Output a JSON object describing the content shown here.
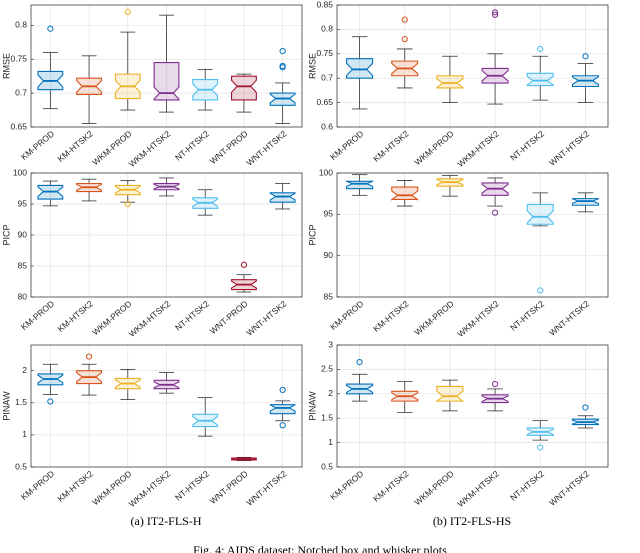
{
  "chart_data": [
    {
      "type": "box",
      "ylabel": "RMSE",
      "ylim": [
        0.65,
        0.83
      ],
      "yticks": [
        0.65,
        0.7,
        0.75,
        0.8
      ],
      "grid": true,
      "categories": [
        "KM-PROD",
        "KM-HTSK2",
        "WKM-PROD",
        "WKM-HTSK2",
        "NT-HTSK2",
        "WNT-PROD",
        "WNT-HTSK2"
      ],
      "colors": [
        "#0072bd",
        "#d95319",
        "#edb120",
        "#7e2f8e",
        "#4dbeee",
        "#a2142f",
        "#0072bd"
      ],
      "stats": [
        {
          "whislo": 0.677,
          "q1": 0.705,
          "med": 0.718,
          "q3": 0.732,
          "whishi": 0.76,
          "fliers": [
            0.795
          ]
        },
        {
          "whislo": 0.655,
          "q1": 0.698,
          "med": 0.71,
          "q3": 0.722,
          "whishi": 0.755,
          "fliers": []
        },
        {
          "whislo": 0.675,
          "q1": 0.692,
          "med": 0.71,
          "q3": 0.728,
          "whishi": 0.79,
          "fliers": [
            0.82
          ]
        },
        {
          "whislo": 0.672,
          "q1": 0.69,
          "med": 0.7,
          "q3": 0.745,
          "whishi": 0.815,
          "fliers": []
        },
        {
          "whislo": 0.675,
          "q1": 0.69,
          "med": 0.705,
          "q3": 0.72,
          "whishi": 0.735,
          "fliers": []
        },
        {
          "whislo": 0.672,
          "q1": 0.69,
          "med": 0.71,
          "q3": 0.725,
          "whishi": 0.728,
          "fliers": []
        },
        {
          "whislo": 0.655,
          "q1": 0.682,
          "med": 0.692,
          "q3": 0.7,
          "whishi": 0.715,
          "fliers": [
            0.738,
            0.74,
            0.762
          ]
        }
      ]
    },
    {
      "type": "box",
      "ylabel": "RMSE",
      "ylim": [
        0.6,
        0.85
      ],
      "yticks": [
        0.6,
        0.65,
        0.7,
        0.75,
        0.8,
        0.85
      ],
      "grid": true,
      "categories": [
        "KM-PROD",
        "KM-HTSK2",
        "WKM-PROD",
        "WKM-HTSK2",
        "NT-HTSK2",
        "WNT-HTSK2"
      ],
      "colors": [
        "#0072bd",
        "#d95319",
        "#edb120",
        "#7e2f8e",
        "#4dbeee",
        "#0072bd"
      ],
      "stats": [
        {
          "whislo": 0.637,
          "q1": 0.7,
          "med": 0.718,
          "q3": 0.74,
          "whishi": 0.785,
          "fliers": []
        },
        {
          "whislo": 0.68,
          "q1": 0.705,
          "med": 0.72,
          "q3": 0.735,
          "whishi": 0.76,
          "fliers": [
            0.78,
            0.82
          ]
        },
        {
          "whislo": 0.65,
          "q1": 0.68,
          "med": 0.69,
          "q3": 0.705,
          "whishi": 0.745,
          "fliers": []
        },
        {
          "whislo": 0.647,
          "q1": 0.69,
          "med": 0.705,
          "q3": 0.72,
          "whishi": 0.75,
          "fliers": [
            0.83,
            0.835
          ]
        },
        {
          "whislo": 0.655,
          "q1": 0.685,
          "med": 0.695,
          "q3": 0.71,
          "whishi": 0.745,
          "fliers": [
            0.76
          ]
        },
        {
          "whislo": 0.65,
          "q1": 0.683,
          "med": 0.695,
          "q3": 0.705,
          "whishi": 0.73,
          "fliers": [
            0.745
          ]
        }
      ]
    },
    {
      "type": "box",
      "ylabel": "PICP",
      "ylim": [
        80,
        100
      ],
      "yticks": [
        80,
        85,
        90,
        95,
        100
      ],
      "grid": true,
      "categories": [
        "KM-PROD",
        "KM-HTSK2",
        "WKM-PROD",
        "WKM-HTSK2",
        "NT-HTSK2",
        "WNT-PROD",
        "WNT-HTSK2"
      ],
      "colors": [
        "#0072bd",
        "#d95319",
        "#edb120",
        "#7e2f8e",
        "#4dbeee",
        "#a2142f",
        "#0072bd"
      ],
      "stats": [
        {
          "whislo": 94.7,
          "q1": 95.8,
          "med": 97,
          "q3": 98,
          "whishi": 98.7,
          "fliers": []
        },
        {
          "whislo": 95.5,
          "q1": 97,
          "med": 97.7,
          "q3": 98.3,
          "whishi": 99,
          "fliers": []
        },
        {
          "whislo": 95.3,
          "q1": 96.5,
          "med": 97.3,
          "q3": 98,
          "whishi": 98.8,
          "fliers": [
            95
          ]
        },
        {
          "whislo": 96.3,
          "q1": 97.3,
          "med": 97.8,
          "q3": 98.3,
          "whishi": 99.2,
          "fliers": []
        },
        {
          "whislo": 93.2,
          "q1": 94.3,
          "med": 95.2,
          "q3": 96,
          "whishi": 97.3,
          "fliers": []
        },
        {
          "whislo": 80.8,
          "q1": 81.2,
          "med": 82,
          "q3": 82.8,
          "whishi": 83.6,
          "fliers": [
            85.2
          ]
        },
        {
          "whislo": 94.2,
          "q1": 95.3,
          "med": 96.2,
          "q3": 96.8,
          "whishi": 98.3,
          "fliers": []
        }
      ]
    },
    {
      "type": "box",
      "ylabel": "PICP",
      "ylim": [
        85,
        100
      ],
      "yticks": [
        85,
        90,
        95,
        100
      ],
      "grid": true,
      "categories": [
        "KM-PROD",
        "KM-HTSK2",
        "WKM-PROD",
        "WKM-HTSK2",
        "NT-HTSK2",
        "WNT-HTSK2"
      ],
      "colors": [
        "#0072bd",
        "#d95319",
        "#edb120",
        "#7e2f8e",
        "#4dbeee",
        "#0072bd"
      ],
      "stats": [
        {
          "whislo": 97.3,
          "q1": 98.1,
          "med": 98.7,
          "q3": 99,
          "whishi": 99.8,
          "fliers": []
        },
        {
          "whislo": 96,
          "q1": 96.8,
          "med": 97.3,
          "q3": 98.3,
          "whishi": 99.1,
          "fliers": []
        },
        {
          "whislo": 97.2,
          "q1": 98.4,
          "med": 98.9,
          "q3": 99.3,
          "whishi": 99.7,
          "fliers": []
        },
        {
          "whislo": 96,
          "q1": 97.3,
          "med": 98.1,
          "q3": 98.8,
          "whishi": 99.4,
          "fliers": [
            95.2
          ]
        },
        {
          "whislo": 93.6,
          "q1": 93.8,
          "med": 94.7,
          "q3": 96.2,
          "whishi": 97.6,
          "fliers": [
            85.8
          ]
        },
        {
          "whislo": 95.3,
          "q1": 96.1,
          "med": 96.6,
          "q3": 96.9,
          "whishi": 97.6,
          "fliers": []
        }
      ]
    },
    {
      "type": "box",
      "ylabel": "PINAW",
      "ylim": [
        0.5,
        2.4
      ],
      "yticks": [
        0.5,
        1,
        1.5,
        2
      ],
      "grid": true,
      "categories": [
        "KM-PROD",
        "KM-HTSK2",
        "WKM-PROD",
        "WKM-HTSK2",
        "NT-HTSK2",
        "WNT-PROD",
        "WNT-HTSK2"
      ],
      "colors": [
        "#0072bd",
        "#d95319",
        "#edb120",
        "#7e2f8e",
        "#4dbeee",
        "#a2142f",
        "#0072bd"
      ],
      "stats": [
        {
          "whislo": 1.63,
          "q1": 1.78,
          "med": 1.87,
          "q3": 1.95,
          "whishi": 2.1,
          "fliers": [
            1.52
          ]
        },
        {
          "whislo": 1.62,
          "q1": 1.8,
          "med": 1.9,
          "q3": 2.0,
          "whishi": 2.1,
          "fliers": [
            2.22
          ]
        },
        {
          "whislo": 1.55,
          "q1": 1.72,
          "med": 1.8,
          "q3": 1.88,
          "whishi": 2.02,
          "fliers": []
        },
        {
          "whislo": 1.65,
          "q1": 1.72,
          "med": 1.78,
          "q3": 1.85,
          "whishi": 1.97,
          "fliers": []
        },
        {
          "whislo": 0.98,
          "q1": 1.13,
          "med": 1.22,
          "q3": 1.32,
          "whishi": 1.58,
          "fliers": []
        },
        {
          "whislo": 0.6,
          "q1": 0.61,
          "med": 0.62,
          "q3": 0.64,
          "whishi": 0.65,
          "fliers": []
        },
        {
          "whislo": 1.22,
          "q1": 1.33,
          "med": 1.42,
          "q3": 1.47,
          "whishi": 1.53,
          "fliers": [
            1.15,
            1.7
          ]
        }
      ]
    },
    {
      "type": "box",
      "ylabel": "PINAW",
      "ylim": [
        0.5,
        3
      ],
      "yticks": [
        0.5,
        1,
        1.5,
        2,
        2.5,
        3
      ],
      "grid": true,
      "categories": [
        "KM-PROD",
        "KM-HTSK2",
        "WKM-PROD",
        "WKM-HTSK2",
        "NT-HTSK2",
        "WNT-HTSK2"
      ],
      "colors": [
        "#0072bd",
        "#d95319",
        "#edb120",
        "#7e2f8e",
        "#4dbeee",
        "#0072bd"
      ],
      "stats": [
        {
          "whislo": 1.85,
          "q1": 2.0,
          "med": 2.1,
          "q3": 2.2,
          "whishi": 2.4,
          "fliers": [
            2.65
          ]
        },
        {
          "whislo": 1.62,
          "q1": 1.85,
          "med": 1.95,
          "q3": 2.05,
          "whishi": 2.25,
          "fliers": []
        },
        {
          "whislo": 1.65,
          "q1": 1.85,
          "med": 1.95,
          "q3": 2.15,
          "whishi": 2.28,
          "fliers": []
        },
        {
          "whislo": 1.65,
          "q1": 1.82,
          "med": 1.9,
          "q3": 1.98,
          "whishi": 2.1,
          "fliers": [
            2.2
          ]
        },
        {
          "whislo": 1.05,
          "q1": 1.15,
          "med": 1.22,
          "q3": 1.3,
          "whishi": 1.45,
          "fliers": [
            0.9
          ]
        },
        {
          "whislo": 1.3,
          "q1": 1.37,
          "med": 1.42,
          "q3": 1.48,
          "whishi": 1.55,
          "fliers": [
            1.72
          ]
        }
      ]
    }
  ],
  "captions": [
    "(a) IT2-FLS-H",
    "(b) IT2-FLS-HS"
  ],
  "figure_caption": "Fig. 4: AIDS dataset: Notched box and whisker plots"
}
